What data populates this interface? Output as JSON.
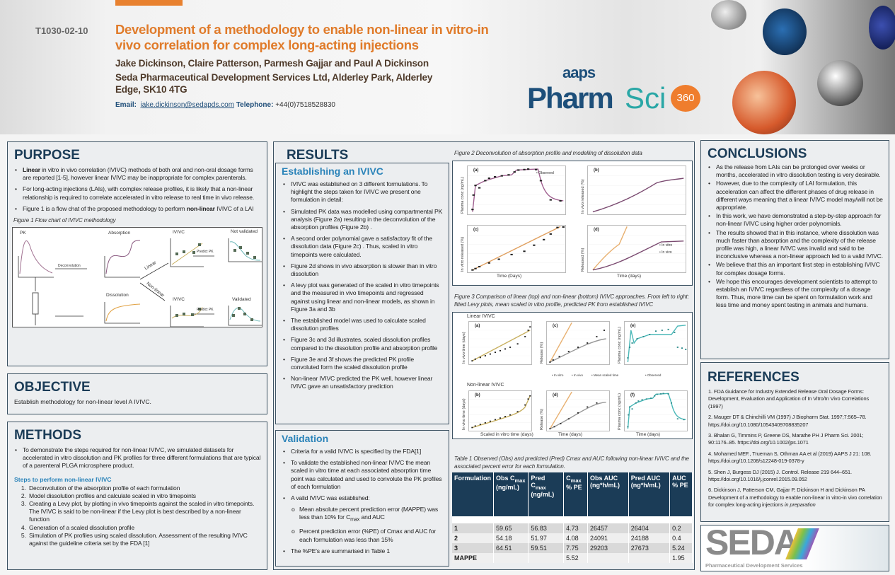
{
  "header": {
    "poster_id": "T1030-02-10",
    "title": "Development of a methodology to enable non-linear in vitro-in vivo correlation for complex long-acting injections",
    "authors": "Jake Dickinson, Claire Patterson, Parmesh Gajjar and Paul A Dickinson",
    "affiliation": "Seda Pharmaceutical Development Services Ltd, Alderley Park, Alderley Edge, SK10 4TG",
    "email_label": "Email:",
    "email": "jake.dickinson@sedapds.com",
    "phone_label": "Telephone:",
    "phone": "+44(0)7518528830"
  },
  "logo": {
    "aaps": "aaps",
    "pharm": "Pharm",
    "sci": "Sci",
    "num": "360"
  },
  "colors": {
    "orange": "#e07b2a",
    "navy": "#1b3c57",
    "blue": "#2a83b9",
    "teal": "#2aa7a6"
  },
  "purpose": {
    "title": "PURPOSE",
    "items": [
      "<b>Linear</b> in vitro in vivo correlation (IVIVC) methods of both oral and non-oral dosage forms are reported [1-5], however linear IVIVC may be inappropriate for  complex parenterals.",
      "For long-acting injections (LAIs), with complex release profiles, it is likely that a non-linear relationship is required to correlate accelerated in vitro release to real time in vivo release.",
      "Figure 1 is a flow chat of the proposed methodology to perform <b>non-linear</b> IVIVC of a LAI"
    ],
    "fig_caption": "Figure 1 Flow chart of  IVIVC methodology",
    "flow": {
      "pk": "PK",
      "deconv": "Deconvolution",
      "absorption": "Absorption",
      "dissolution": "Dissolution",
      "linear": "Linear",
      "nonlinear": "Non-linear",
      "ivivc1": "IVIVC",
      "ivivc2": "IVIVC",
      "predict1": "Predict PK",
      "predict2": "Predict PK",
      "not_validated": "Not validated",
      "validated": "Validated"
    }
  },
  "objective": {
    "title": "OBJECTIVE",
    "text": "Establish methodology for non-linear level A IVIVC."
  },
  "methods": {
    "title": "METHODS",
    "intro": "To demonstrate the steps required for non-linear IVIVC, we simulated datasets for accelerated in vitro dissolution and PK profiles for three different formulations that are typical of a parenteral PLGA microsphere product.",
    "steps_title": "Steps to perform non-linear IVIVC",
    "steps": [
      "Deconvolution of the absorption profile of each formulation",
      "Model dissolution profiles and calculate scaled in vitro timepoints",
      "Creating a Levy plot, by plotting in vivo timepoints against the scaled in vitro timepoints. The IVIVC is said to be non-linear if the Levy plot is best described by a non-linear function",
      "Generation of a scaled dissolution profile",
      "Simulation of PK profiles using scaled dissolution. Assessment of the resulting IVIVC against the guideline criteria set by the FDA [1]"
    ]
  },
  "results": {
    "title": "RESULTS",
    "establishing_title": "Establishing an IVIVC",
    "establishing": [
      "IVIVC was established on 3 different formulations. To highlight the steps taken for IVIVC we present one formulation in detail:",
      "Simulated PK data was modelled using compartmental PK analysis (Figure 2a) resulting in the deconvolution of the absorption profiles (Figure 2b) .",
      "A second order polynomial gave a satisfactory fit of the dissolution data (Figure 2c) . Thus, scaled in vitro timepoints were calculated.",
      "Figure 2d shows in vivo absorption is slower than in vitro dissolution",
      "A levy plot was generated of the scaled in vitro timepoints and the measured in vivo timepoints and regressed against using linear and non-linear models, as shown in Figure 3a and 3b",
      "The established model was used to calculate scaled dissolution profiles",
      "Figure 3c and 3d illustrates, scaled dissolution profiles compared to the dissolution profile and absorption profile",
      "Figure 3e and 3f shows the predicted PK profile convoluted form the scaled dissolution profile",
      "Non-linear IVIVC predicted the PK well, however linear IVIVC gave an unsatisfactory prediction"
    ],
    "validation_title": "Validation",
    "validation": [
      "Criteria for a valid IVIVC is specified by the FDA[1]",
      "To validate the established non-linear IVIVC the mean scaled in vitro time at each associated absorption time point was calculated and used to convolute the PK profiles of each formulation",
      "A valid IVIVC was established:"
    ],
    "validation_sub": [
      "Mean absolute percent prediction error (MAPPE) was less than 10% for C<sub>max</sub> and AUC",
      "Percent prediction error (%PE) of Cmax and AUC for each formulation was less than 15%"
    ],
    "validation_last": "The %PE's are summarised in Table 1"
  },
  "figure2": {
    "caption": "Figure 2  Deconvolution of absorption profile and modelling of dissolution data",
    "panels": [
      "(a)",
      "(b)",
      "(c)",
      "(d)"
    ],
    "legend_a": "Observed",
    "legend_d": [
      "In vitro",
      "In vivo"
    ],
    "xlabel_left": "Time (Days)",
    "xlabel_right": "Time (days)",
    "ylabels": [
      "Plasma conc (ng/mL)",
      "In vivo released (%)",
      "In vitro released (%)",
      "Released (%)"
    ]
  },
  "figure3": {
    "caption": "Figure 3 Comparison of linear (top) and non-linear (bottom) IVIVC approaches. From left to right: fitted Levy plots, mean scaled in vitro profile, predicted PK from established IVIVC",
    "linear": "Linear IVIVC",
    "nonlinear": "Non-linear IVIVC",
    "panels": [
      "(a)",
      "(c)",
      "(e)",
      "(b)",
      "(d)",
      "(f)"
    ],
    "xlabels": [
      "Scaled in vitro time (days)",
      "Time (days)",
      "Time (days)"
    ],
    "ylabels": [
      "In vivo time (days)",
      "Release (%)",
      "Plasma conc (ng/mL)"
    ],
    "legend_mid": [
      "In vitro",
      "In vivo",
      "Mean scaled time"
    ],
    "legend_right": "Observed"
  },
  "table1": {
    "caption": "Table 1  Observed (Obs) and predicted (Pred) Cmax and AUC following non-linear IVIVC and the associated percent error for each formulation.",
    "headers": [
      "Formulation",
      "Obs C<sub>max</sub> (ng/mL)",
      "Pred C<sub>max</sub> (ng/mL)",
      "C<sub>max</sub> % PE",
      "Obs AUC (ng*h/mL)",
      "Pred AUC (ng*h/mL)",
      "AUC % PE"
    ],
    "rows": [
      [
        "1",
        "59.65",
        "56.83",
        "4.73",
        "26457",
        "26404",
        "0.2"
      ],
      [
        "2",
        "54.18",
        "51.97",
        "4.08",
        "24091",
        "24188",
        "0.4"
      ],
      [
        "3",
        "64.51",
        "59.51",
        "7.75",
        "29203",
        "27673",
        "5.24"
      ],
      [
        "MAPPE",
        "",
        "",
        "5.52",
        "",
        "",
        "1.95"
      ]
    ]
  },
  "conclusions": {
    "title": "CONCLUSIONS",
    "items": [
      "As the release from LAIs can be prolonged over weeks or months, accelerated in vitro dissolution testing is very desirable.",
      "However, due to the complexity of LAI formulation, this acceleration can affect the different phases of drug release in different ways meaning that a linear IVIVC model may/will not be appropriate.",
      "In this work, we have demonstrated a step-by-step approach for non-linear IVIVC using higher order polynomials.",
      "The results showed that in this instance, where dissolution was much faster than absorption and the complexity of the release profile was high, a linear IVIVC was invalid and said to be inconclusive whereas a non-linear approach led to a valid IVIVC.",
      "We believe that this an important first step in establishing IVIVC for complex dosage forms.",
      "We hope this encourages development scientists to attempt to establish an IVIVC regardless of the complexity of a dosage form. Thus, more time can be spent on formulation work and less time and money spent testing in animals and humans."
    ]
  },
  "references": {
    "title": "REFERENCES",
    "items": [
      "1. FDA Guidance for Industry Extended Release Oral Dosage Forms: Development, Evaluation and Application of In Vitro/In Vivo Correlations (1997)",
      "2. Mauger DT & Chinchilli VM (1997) J Biopharm Stat. 1997;7:565–78. https://doi.org/10.1080/10543409708835207",
      "3. Bhalan G, Timmins P, Greene DS, Marathe PH J Pharm Sci. 2001; 90:1176–85. https://doi.org/10.1002/jps.1071",
      "4. Mohamed MEF., Trueman S, Othman AA et al (2019)  AAPS J 21: 108. https://doi.org/10.1208/s12248-019-0378-y",
      "5. Shen J, Burgess DJ (2015) J. Control. Release 219 644–651. https://doi.org/10.1016/j.jconrel.2015.09.052",
      "6. Dickinson J, Patterson CM, Gajjar P, Dickinson H and Dickinson PA Development of a methodology to enable non-linear in vitro-in vivo correlation for complex long-acting injections <i>in preparation</i>"
    ]
  },
  "seda": {
    "name": "SEDA",
    "tagline": "Pharmaceutical Development Services"
  }
}
